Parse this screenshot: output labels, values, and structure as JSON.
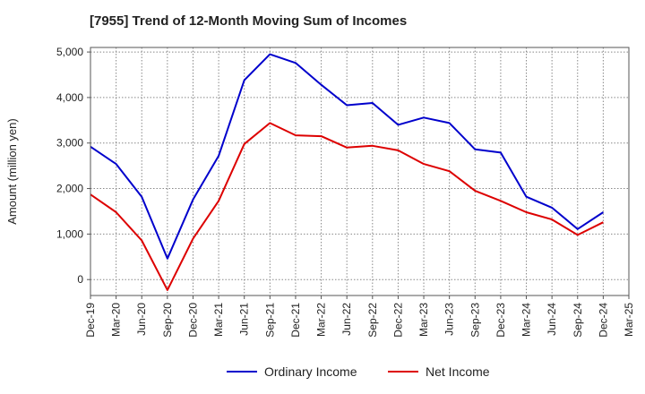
{
  "header": {
    "title": "[7955]  Trend of 12-Month Moving Sum of Incomes"
  },
  "chart_data": {
    "type": "line",
    "title": "[7955]  Trend of 12-Month Moving Sum of Incomes",
    "xlabel": "",
    "ylabel": "Amount (million yen)",
    "categories": [
      "Dec-19",
      "Mar-20",
      "Jun-20",
      "Sep-20",
      "Dec-20",
      "Mar-21",
      "Jun-21",
      "Sep-21",
      "Dec-21",
      "Mar-22",
      "Jun-22",
      "Sep-22",
      "Dec-22",
      "Mar-23",
      "Jun-23",
      "Sep-23",
      "Dec-23",
      "Mar-24",
      "Jun-24",
      "Sep-24",
      "Dec-24",
      "Mar-25"
    ],
    "y_ticks": [
      0,
      1000,
      2000,
      3000,
      4000,
      5000
    ],
    "y_tick_labels": [
      "0",
      "1,000",
      "2,000",
      "3,000",
      "4,000",
      "5,000"
    ],
    "ylim": [
      -350,
      5100
    ],
    "grid": true,
    "legend_position": "bottom",
    "series": [
      {
        "name": "Ordinary Income",
        "color": "#0000cc",
        "values": [
          2920,
          2540,
          1820,
          460,
          1760,
          2720,
          4380,
          4950,
          4760,
          4280,
          3830,
          3880,
          3400,
          3560,
          3440,
          2860,
          2790,
          1820,
          1580,
          1110,
          1480,
          null
        ]
      },
      {
        "name": "Net Income",
        "color": "#dd0000",
        "values": [
          1870,
          1480,
          860,
          -230,
          900,
          1730,
          2980,
          3440,
          3170,
          3150,
          2900,
          2940,
          2840,
          2540,
          2380,
          1950,
          1730,
          1480,
          1320,
          980,
          1260,
          null
        ]
      }
    ]
  }
}
